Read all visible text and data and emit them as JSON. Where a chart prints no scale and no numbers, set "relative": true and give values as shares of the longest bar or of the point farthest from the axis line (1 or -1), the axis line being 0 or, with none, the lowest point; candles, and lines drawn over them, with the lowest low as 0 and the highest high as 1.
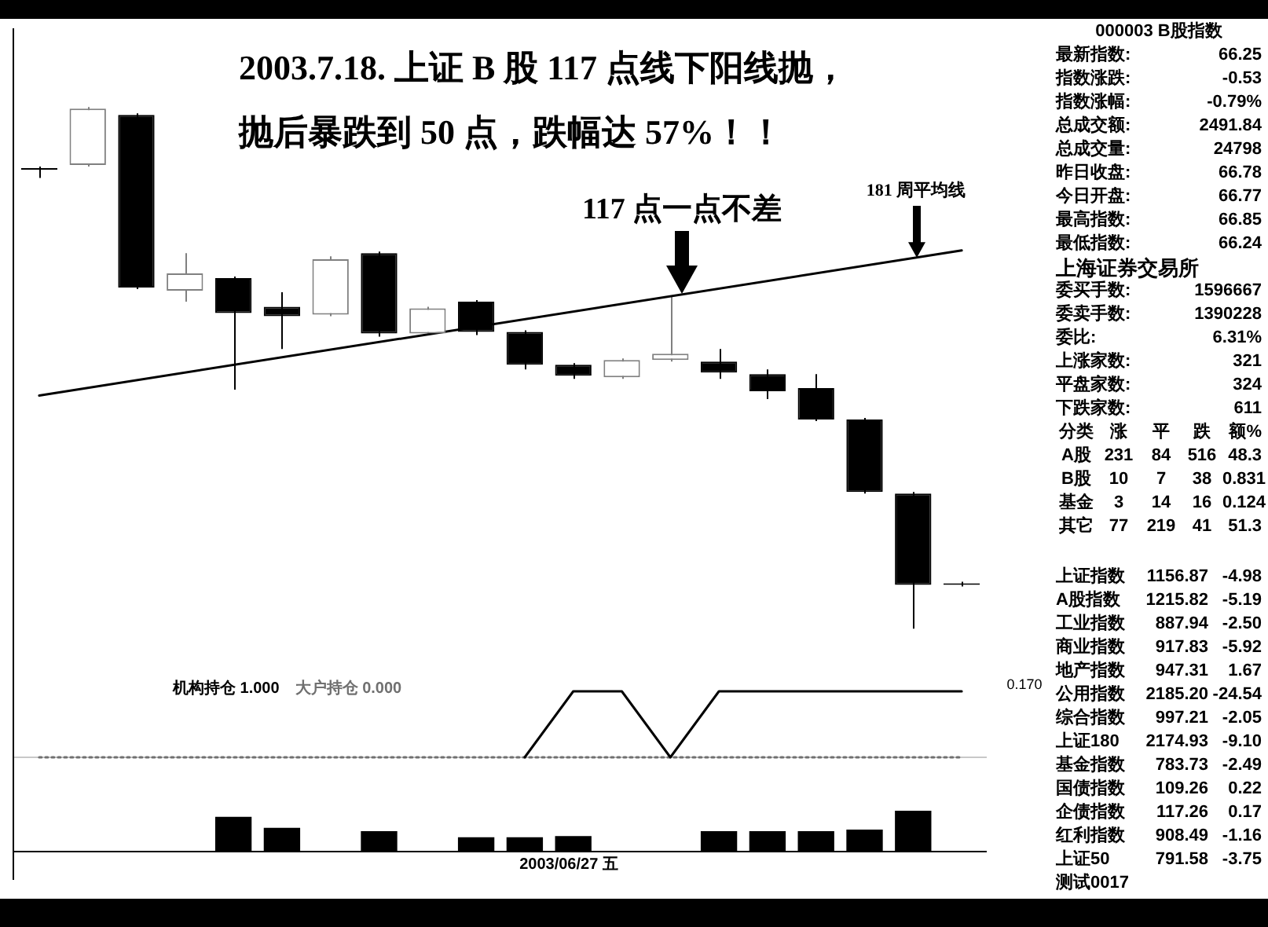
{
  "chart_data": [
    {
      "type": "candlestick",
      "title": "2003.7.18. 上证 B 股 117 点线下阳线抛，",
      "subtitle": "抛后暴跌到 50 点，跌幅达 57%！！",
      "categories": [
        null,
        null,
        null,
        null,
        null,
        null,
        null,
        null,
        null,
        null,
        null,
        null,
        null,
        null,
        null,
        null,
        null,
        null,
        null,
        null
      ],
      "ohlc": [
        [
          0.883,
          0.886,
          0.864,
          0.88
        ],
        [
          0.889,
          1.0,
          0.886,
          0.997
        ],
        [
          0.985,
          0.988,
          0.651,
          0.654
        ],
        [
          0.648,
          0.72,
          0.627,
          0.681
        ],
        [
          0.672,
          0.675,
          0.458,
          0.605
        ],
        [
          0.617,
          0.645,
          0.536,
          0.599
        ],
        [
          0.602,
          0.714,
          0.599,
          0.708
        ],
        [
          0.72,
          0.723,
          0.56,
          0.566
        ],
        [
          0.566,
          0.617,
          0.563,
          0.614
        ],
        [
          0.627,
          0.63,
          0.563,
          0.569
        ],
        [
          0.569,
          0.572,
          0.497,
          0.506
        ],
        [
          0.506,
          0.509,
          0.479,
          0.485
        ],
        [
          0.482,
          0.518,
          0.479,
          0.515
        ],
        [
          0.515,
          0.639,
          0.512,
          0.527
        ],
        [
          0.512,
          0.536,
          0.479,
          0.491
        ],
        [
          0.488,
          0.497,
          0.44,
          0.455
        ],
        [
          0.461,
          0.488,
          0.398,
          0.401
        ],
        [
          0.401,
          0.404,
          0.259,
          0.262
        ],
        [
          0.259,
          0.262,
          0.0,
          0.084
        ],
        [
          0.087,
          0.09,
          0.081,
          0.084
        ]
      ],
      "colors": [
        "#000000",
        "#808080",
        "#000000",
        "#808080",
        "#000000",
        "#000000",
        "#808080",
        "#000000",
        "#808080",
        "#000000",
        "#000000",
        "#000000",
        "#808080",
        "#808080",
        "#000000",
        "#000000",
        "#000000",
        "#000000",
        "#000000",
        "#000000"
      ],
      "series": [
        {
          "type": "line",
          "color": "#000000",
          "values": [
            0.447,
            null,
            null,
            null,
            null,
            null,
            null,
            null,
            null,
            null,
            null,
            null,
            null,
            null,
            null,
            null,
            null,
            null,
            null,
            0.725
          ]
        }
      ],
      "relative": true,
      "tick_labels": false,
      "annotations": [
        "117 点一点不差",
        "181 周平均线"
      ]
    },
    {
      "type": "line",
      "categories": [
        null,
        null,
        null,
        null,
        null,
        null,
        null,
        null,
        null,
        null,
        null,
        null,
        null,
        null,
        null,
        null,
        null,
        null,
        null,
        null
      ],
      "series": [
        {
          "name": "机构持仓 1.000",
          "color": "#000000",
          "values": [
            null,
            null,
            null,
            null,
            null,
            null,
            null,
            null,
            null,
            null,
            0,
            1,
            1,
            0,
            1,
            1,
            1,
            1,
            1,
            1
          ]
        },
        {
          "name": "大户持仓 0.000",
          "color": "#707070",
          "line_style": "dotted",
          "values": [
            0,
            0,
            0,
            0,
            0,
            0,
            0,
            0,
            0,
            0,
            0,
            0,
            0,
            0,
            0,
            0,
            0,
            0,
            0,
            0
          ]
        }
      ],
      "relative": true,
      "tick_labels": false,
      "annotations": [
        "0.170"
      ]
    },
    {
      "type": "bar",
      "categories": [
        null,
        null,
        null,
        null,
        null,
        null,
        null,
        null,
        null,
        null,
        null,
        null,
        null,
        null,
        null,
        null,
        null,
        null,
        null,
        null
      ],
      "values": [
        null,
        null,
        null,
        null,
        0.85,
        0.58,
        null,
        0.5,
        null,
        0.35,
        0.35,
        0.38,
        null,
        null,
        0.5,
        0.5,
        0.5,
        0.54,
        1.0,
        null
      ],
      "color": "#000000",
      "relative": true,
      "tick_labels": false,
      "annotations": [
        "2003/06/27 五"
      ]
    },
    {
      "type": "other",
      "annotations": [
        "000003 B股指数",
        "最新指数: 66.25",
        "指数涨跌: -0.53",
        "指数涨幅: -0.79%",
        "总成交额: 2491.84",
        "总成交量: 24798",
        "昨日收盘: 66.78",
        "今日开盘: 66.77",
        "最高指数: 66.85",
        "最低指数: 66.24",
        "上海证券交易所",
        "委买手数: 1596667",
        "委卖手数: 1390228",
        "委比: 6.31%",
        "上涨家数: 321",
        "平盘家数: 324",
        "下跌家数: 611",
        "分类 涨 平 跌 额%",
        "A股 231 84 516 48.3",
        "B股 10 7 38 0.831",
        "基金 3 14 16 0.124",
        "其它 77 219 41 51.3",
        "上证指数 1156.87 -4.98",
        "A股指数 1215.82 -5.19",
        "工业指数 887.94 -2.50",
        "商业指数 917.83 -5.92",
        "地产指数 947.31 1.67",
        "公用指数 2185.20 -24.54",
        "综合指数 997.21 -2.05",
        "上证180 2174.93 -9.10",
        "基金指数 783.73 -2.49",
        "国债指数 109.26 0.22",
        "企债指数 117.26 0.17",
        "红利指数 908.49 -1.16",
        "上证50 791.58 -3.75",
        "测试0017"
      ]
    }
  ]
}
